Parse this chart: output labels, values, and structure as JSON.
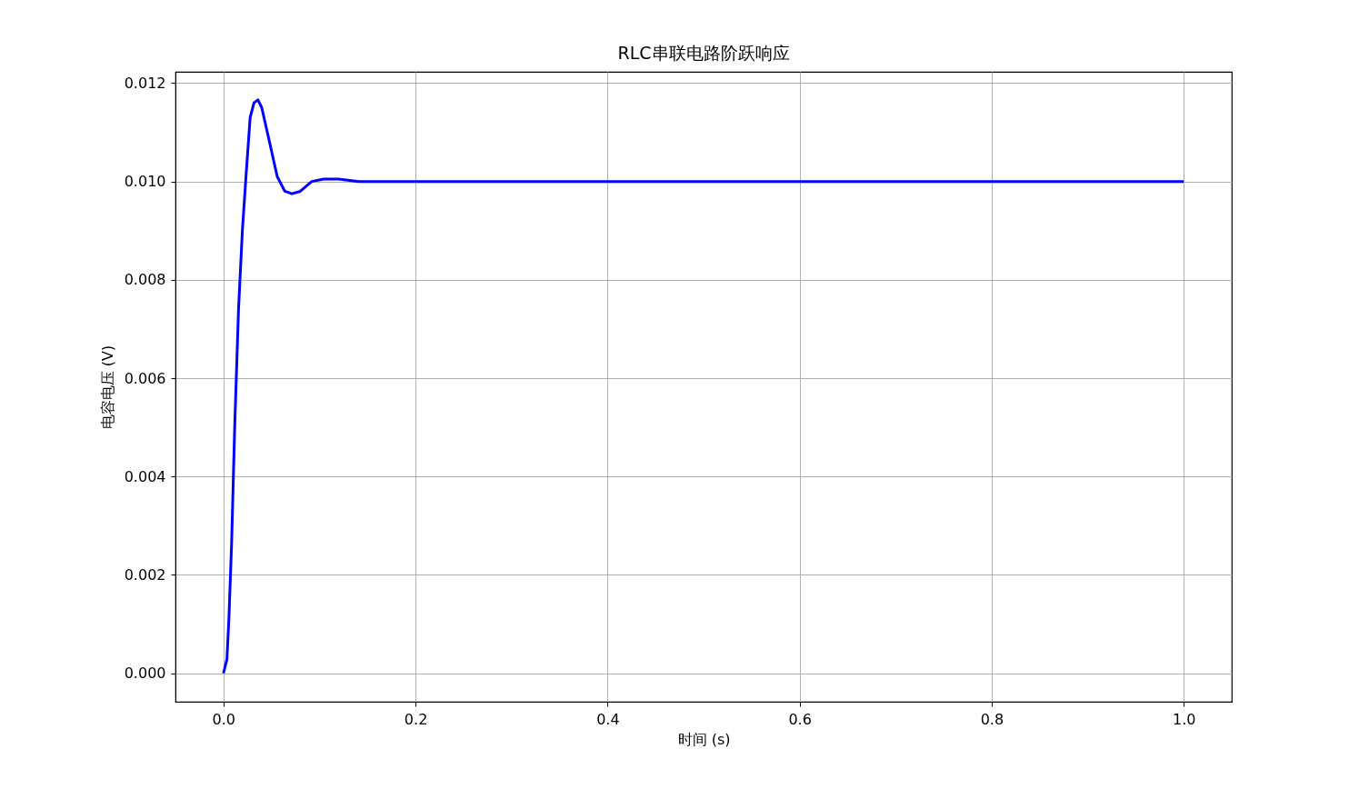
{
  "chart_data": {
    "type": "line",
    "title": "RLC串联电路阶跃响应",
    "xlabel": "时间 (s)",
    "ylabel": "电容电压 (V)",
    "x": [
      0,
      0.0036,
      0.0056,
      0.0085,
      0.0117,
      0.0157,
      0.0197,
      0.0238,
      0.0278,
      0.0318,
      0.0359,
      0.0399,
      0.048,
      0.056,
      0.064,
      0.0713,
      0.08,
      0.092,
      0.1044,
      0.12,
      0.141,
      0.2,
      0.5,
      1.0
    ],
    "series": [
      {
        "color": "#0000ff",
        "values": [
          0,
          0.00028,
          0.00107,
          0.00264,
          0.005,
          0.0074,
          0.009,
          0.0102,
          0.0113,
          0.0116,
          0.01166,
          0.0115,
          0.0108,
          0.0101,
          0.0098,
          0.00975,
          0.0098,
          0.01,
          0.01005,
          0.01005,
          0.01,
          0.01,
          0.01,
          0.01
        ]
      }
    ],
    "xlim": [
      -0.05,
      1.05
    ],
    "ylim": [
      -0.00058,
      0.01223
    ],
    "xticks": [
      {
        "value": 0,
        "label": "0.0"
      },
      {
        "value": 0.2,
        "label": "0.2"
      },
      {
        "value": 0.4,
        "label": "0.4"
      },
      {
        "value": 0.6,
        "label": "0.6"
      },
      {
        "value": 0.8,
        "label": "0.8"
      },
      {
        "value": 1.0,
        "label": "1.0"
      }
    ],
    "yticks": [
      {
        "value": 0,
        "label": "0.000"
      },
      {
        "value": 0.002,
        "label": "0.002"
      },
      {
        "value": 0.004,
        "label": "0.004"
      },
      {
        "value": 0.006,
        "label": "0.006"
      },
      {
        "value": 0.008,
        "label": "0.008"
      },
      {
        "value": 0.01,
        "label": "0.010"
      },
      {
        "value": 0.012,
        "label": "0.012"
      }
    ],
    "grid": true
  }
}
